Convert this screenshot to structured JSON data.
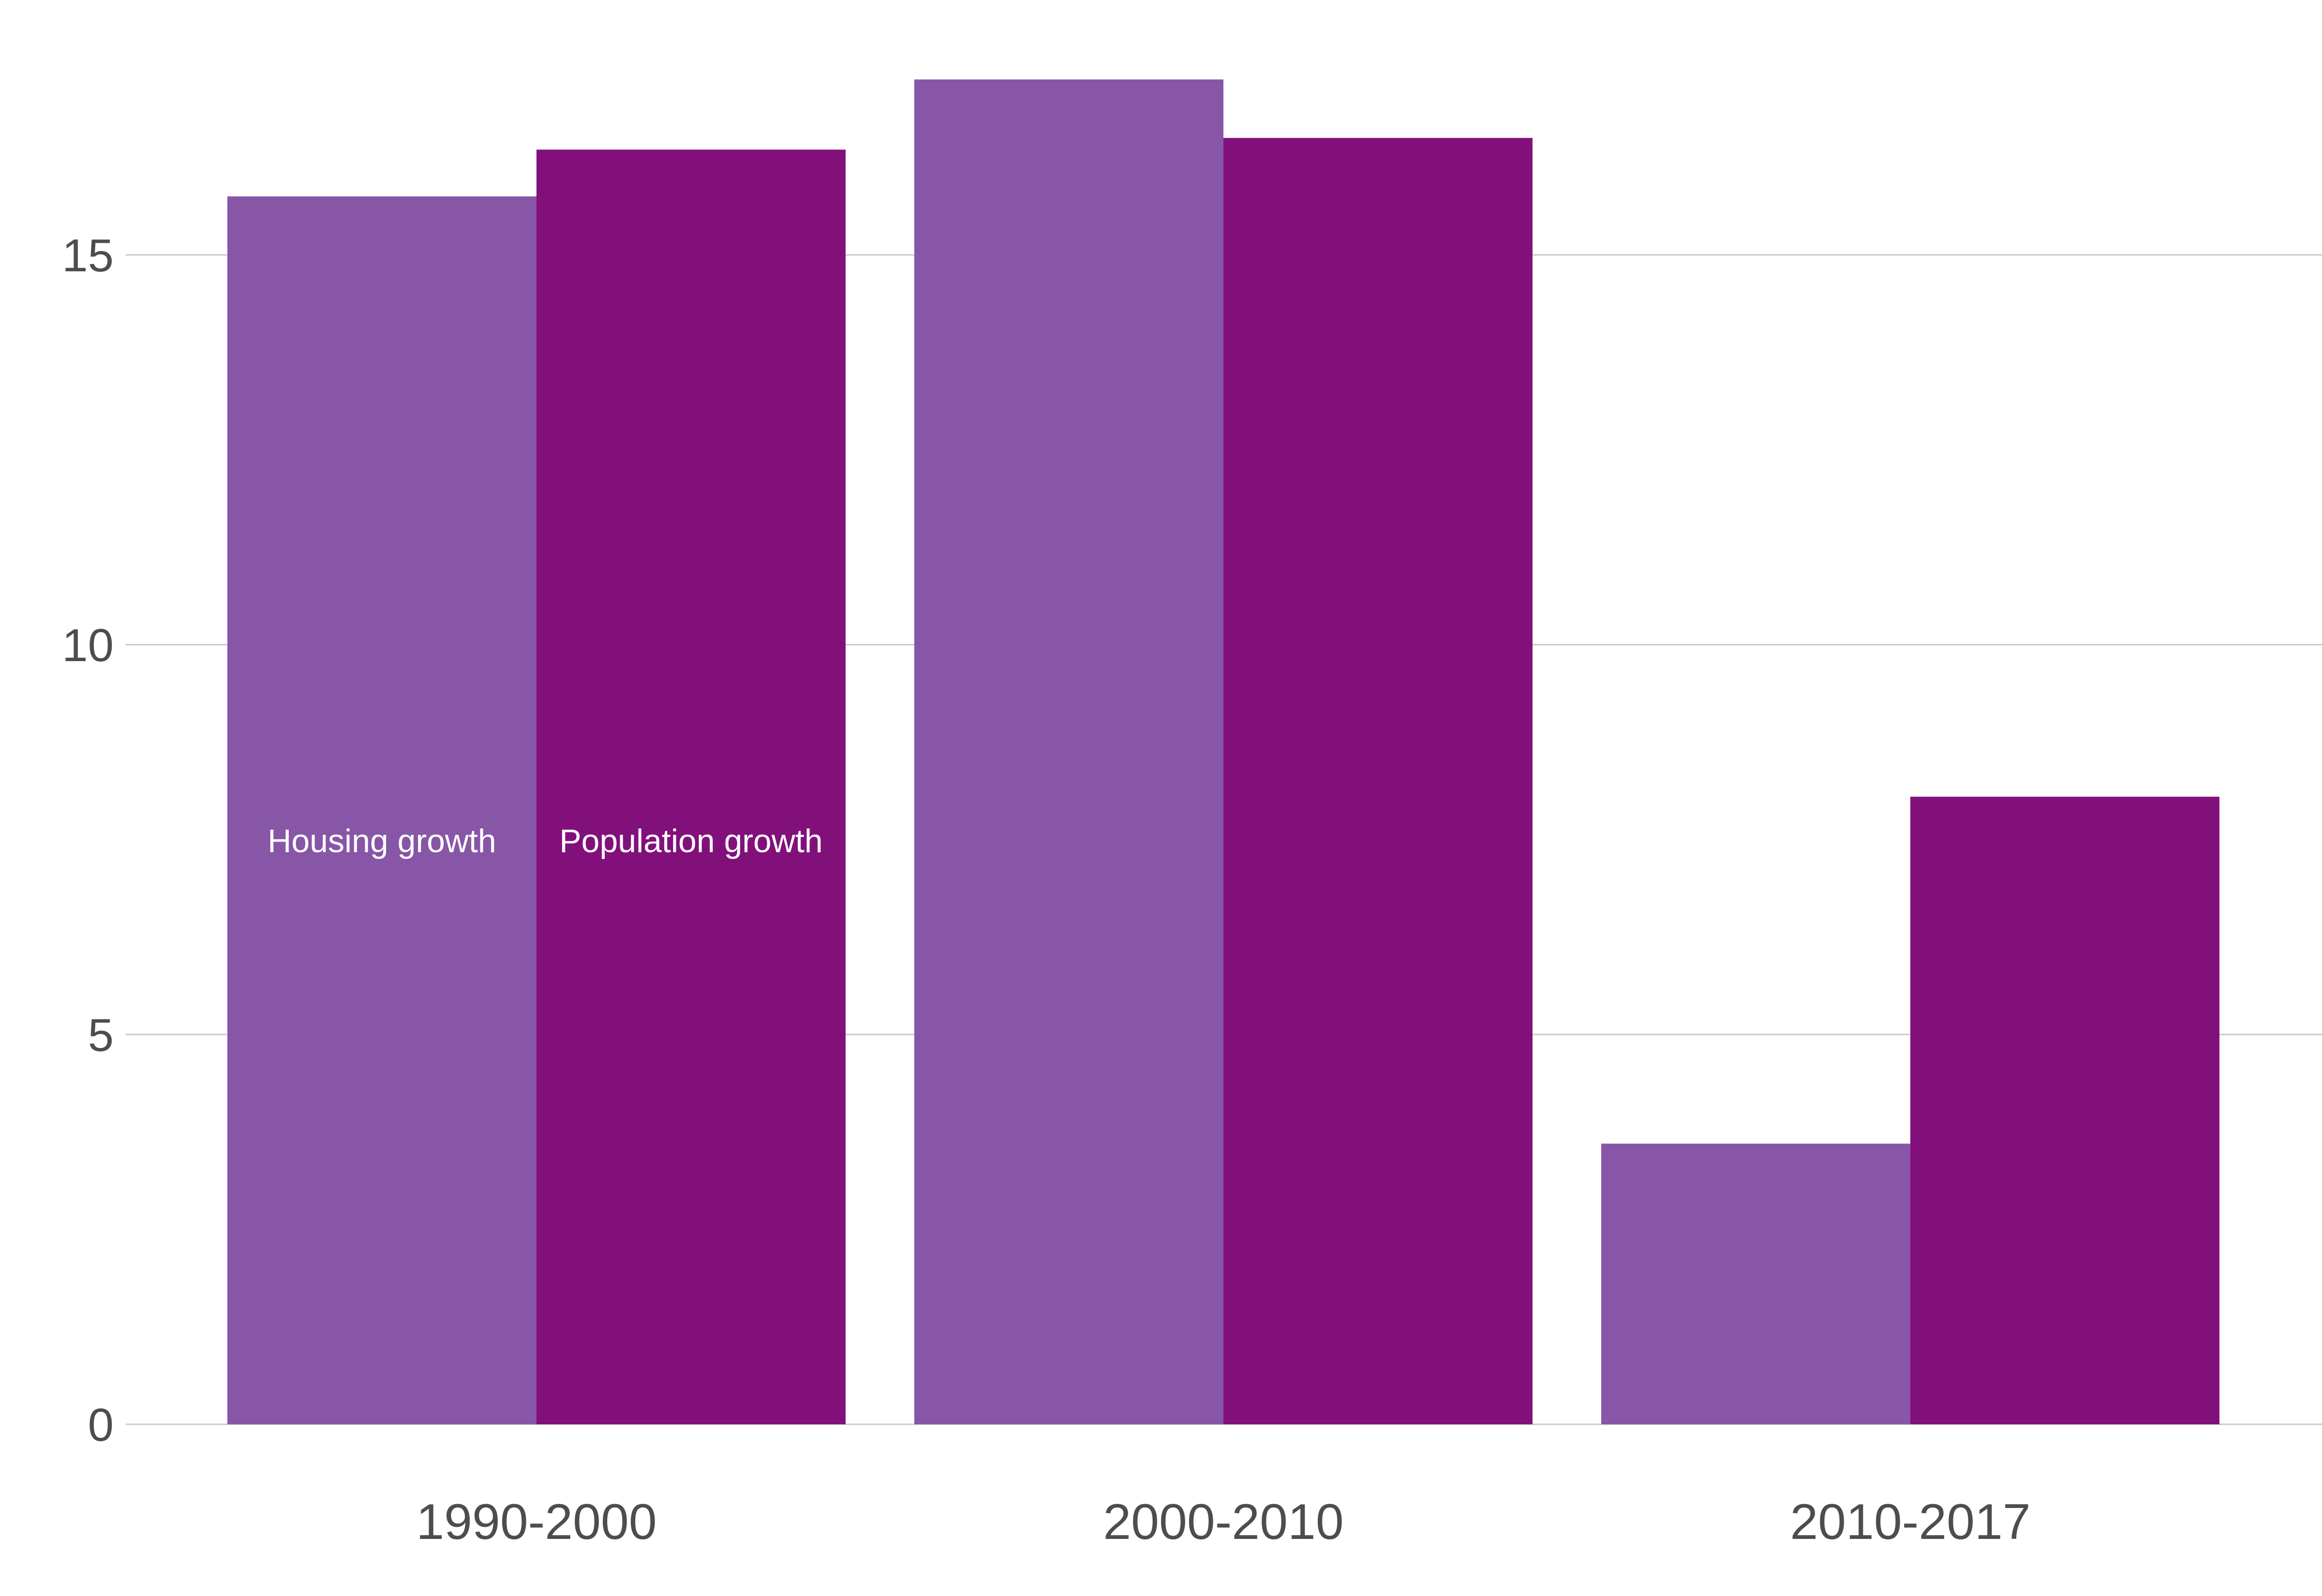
{
  "chart_data": {
    "type": "bar",
    "title": "",
    "xlabel": "",
    "ylabel": "",
    "categories": [
      "1990-2000",
      "2000-2010",
      "2010-2017"
    ],
    "series": [
      {
        "name": "Housing growth",
        "values": [
          15.75,
          17.25,
          3.6
        ],
        "color": "#8756a7"
      },
      {
        "name": "Population growth",
        "values": [
          16.35,
          16.5,
          8.05
        ],
        "color": "#82107b"
      }
    ],
    "ylim": [
      0,
      17.8
    ],
    "yticks": [
      "0",
      "5",
      "10",
      "15"
    ],
    "grid": "horizontal",
    "legend": "labels inside first group of bars",
    "gridline_color": "#c8c8c8",
    "text_color": "#4d4d4d",
    "series_label_color": "#ffffff"
  }
}
